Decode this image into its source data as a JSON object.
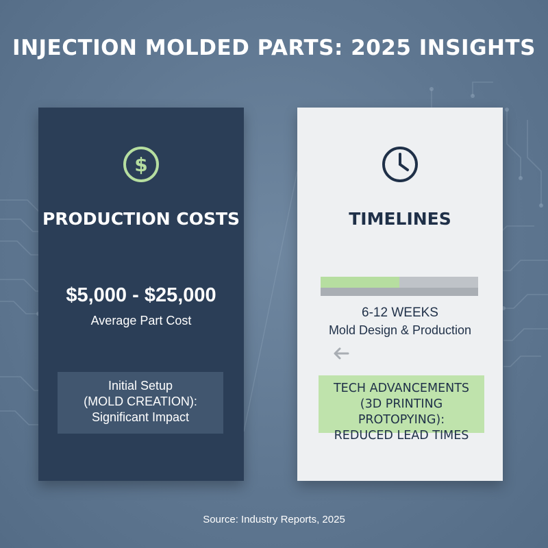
{
  "title": "INJECTION MOLDED PARTS: 2025 INSIGHTS",
  "colors": {
    "background": "#5f7791",
    "left_card": "#2b3e57",
    "right_card": "#eef0f2",
    "accent_green": "#b6dea0",
    "note_box": "#41566f"
  },
  "left_card": {
    "icon": "dollar-icon",
    "heading": "PRODUCTION COSTS",
    "value": "$5,000 - $25,000",
    "value_label": "Average Part Cost",
    "note_lines": [
      "Initial Setup",
      "(MOLD CREATION):",
      "Significant Impact"
    ]
  },
  "right_card": {
    "icon": "clock-icon",
    "heading": "TIMELINES",
    "progress_fraction": 0.5,
    "duration": "6-12 WEEKS",
    "duration_label": "Mold Design & Production",
    "arrow_icon": "arrow-left-icon",
    "highlight_lines": [
      "TECH ADVANCEMENTS",
      "(3D PRINTING PROTOPYING):",
      "REDUCED LEAD TIMES"
    ]
  },
  "source": "Source: Industry Reports, 2025"
}
